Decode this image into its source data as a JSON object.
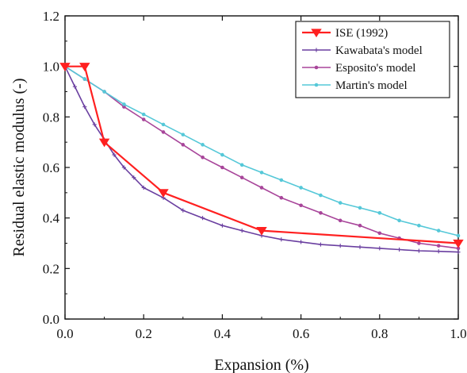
{
  "chart_data": {
    "type": "line",
    "xlabel": "Expansion (%)",
    "ylabel": "Residual elastic modulus (-)",
    "xlim": [
      0,
      1.0
    ],
    "ylim": [
      0,
      1.2
    ],
    "x_ticks": [
      0.0,
      0.2,
      0.4,
      0.6,
      0.8,
      1.0
    ],
    "x_tick_labels": [
      "0.0",
      "0.2",
      "0.4",
      "0.6",
      "0.8",
      "1.0"
    ],
    "y_ticks": [
      0.0,
      0.2,
      0.4,
      0.6,
      0.8,
      1.0,
      1.2
    ],
    "y_tick_labels": [
      "0.0",
      "0.2",
      "0.4",
      "0.6",
      "0.8",
      "1.0",
      "1.2"
    ],
    "grid": false,
    "legend_position": "top-right",
    "series": [
      {
        "name": "ISE (1992)",
        "color": "#ff2020",
        "marker": "triangle-down",
        "x": [
          0.0,
          0.05,
          0.1,
          0.25,
          0.5,
          1.0
        ],
        "y": [
          1.0,
          1.0,
          0.7,
          0.5,
          0.35,
          0.3
        ]
      },
      {
        "name": "Kawabata's model",
        "color": "#6a3fa0",
        "marker": "plus",
        "x": [
          0.0,
          0.025,
          0.05,
          0.075,
          0.1,
          0.125,
          0.15,
          0.175,
          0.2,
          0.25,
          0.3,
          0.35,
          0.4,
          0.45,
          0.5,
          0.55,
          0.6,
          0.65,
          0.7,
          0.75,
          0.8,
          0.85,
          0.9,
          0.95,
          1.0
        ],
        "y": [
          1.0,
          0.92,
          0.84,
          0.77,
          0.71,
          0.65,
          0.6,
          0.56,
          0.52,
          0.48,
          0.43,
          0.4,
          0.37,
          0.35,
          0.33,
          0.315,
          0.305,
          0.295,
          0.29,
          0.285,
          0.28,
          0.275,
          0.27,
          0.268,
          0.265
        ]
      },
      {
        "name": "Esposito's model",
        "color": "#a8459a",
        "marker": "dot",
        "x": [
          0.0,
          0.05,
          0.1,
          0.15,
          0.2,
          0.25,
          0.3,
          0.35,
          0.4,
          0.45,
          0.5,
          0.55,
          0.6,
          0.65,
          0.7,
          0.75,
          0.8,
          0.85,
          0.9,
          0.95,
          1.0
        ],
        "y": [
          1.0,
          0.95,
          0.9,
          0.84,
          0.79,
          0.74,
          0.69,
          0.64,
          0.6,
          0.56,
          0.52,
          0.48,
          0.45,
          0.42,
          0.39,
          0.37,
          0.34,
          0.32,
          0.3,
          0.29,
          0.28
        ]
      },
      {
        "name": "Martin's model",
        "color": "#55c8d8",
        "marker": "dot",
        "x": [
          0.0,
          0.05,
          0.1,
          0.15,
          0.2,
          0.25,
          0.3,
          0.35,
          0.4,
          0.45,
          0.5,
          0.55,
          0.6,
          0.65,
          0.7,
          0.75,
          0.8,
          0.85,
          0.9,
          0.95,
          1.0
        ],
        "y": [
          1.0,
          0.95,
          0.9,
          0.85,
          0.81,
          0.77,
          0.73,
          0.69,
          0.65,
          0.61,
          0.58,
          0.55,
          0.52,
          0.49,
          0.46,
          0.44,
          0.42,
          0.39,
          0.37,
          0.35,
          0.33
        ]
      }
    ]
  }
}
